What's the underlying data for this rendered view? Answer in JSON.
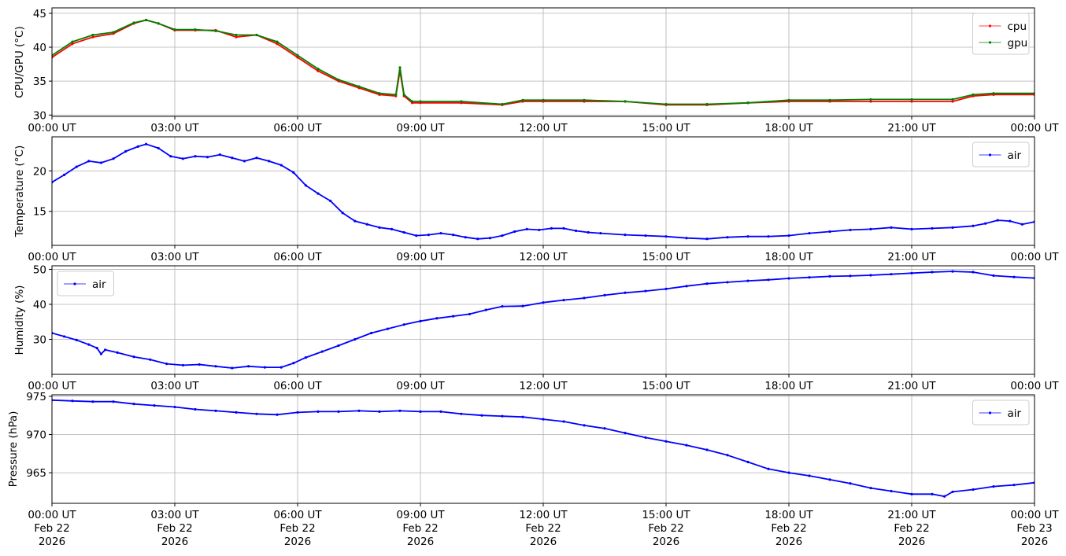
{
  "chart_data": [
    {
      "type": "line",
      "ylabel": "CPU/GPU (°C)",
      "ylim": [
        29.8,
        45.8
      ],
      "yticks": [
        30,
        35,
        40,
        45
      ],
      "xlim": [
        0,
        24
      ],
      "xticks": [
        0,
        3,
        6,
        9,
        12,
        15,
        18,
        21,
        24
      ],
      "xtick_labels": [
        "00:00 UT",
        "03:00 UT",
        "06:00 UT",
        "09:00 UT",
        "12:00 UT",
        "15:00 UT",
        "18:00 UT",
        "21:00 UT",
        "00:00 UT"
      ],
      "grid": true,
      "legend": "upper-right",
      "series": [
        {
          "name": "cpu",
          "color": "#ff0000",
          "x": [
            0,
            0.5,
            1.0,
            1.5,
            2.0,
            2.3,
            2.6,
            3.0,
            3.5,
            4.0,
            4.5,
            5.0,
            5.5,
            6.0,
            6.5,
            7.0,
            7.5,
            8.0,
            8.4,
            8.5,
            8.6,
            8.8,
            9.0,
            10.0,
            11.0,
            11.5,
            12.0,
            13.0,
            14.0,
            15.0,
            16.0,
            17.0,
            18.0,
            19.0,
            20.0,
            21.0,
            22.0,
            22.5,
            23.0,
            24.0
          ],
          "y": [
            38.5,
            40.5,
            41.5,
            42.0,
            43.5,
            44.0,
            43.5,
            42.5,
            42.5,
            42.5,
            41.5,
            41.8,
            40.5,
            38.5,
            36.5,
            35.0,
            34.0,
            33.0,
            32.8,
            36.5,
            32.8,
            31.8,
            31.8,
            31.8,
            31.5,
            32.0,
            32.0,
            32.0,
            32.0,
            31.5,
            31.5,
            31.8,
            32.0,
            32.0,
            32.0,
            32.0,
            32.0,
            32.8,
            33.0,
            33.0
          ]
        },
        {
          "name": "gpu",
          "color": "#008000",
          "x": [
            0,
            0.5,
            1.0,
            1.5,
            2.0,
            2.3,
            2.6,
            3.0,
            3.5,
            4.0,
            4.5,
            5.0,
            5.5,
            6.0,
            6.5,
            7.0,
            7.5,
            8.0,
            8.4,
            8.5,
            8.6,
            8.8,
            9.0,
            10.0,
            11.0,
            11.5,
            12.0,
            13.0,
            14.0,
            15.0,
            16.0,
            17.0,
            18.0,
            19.0,
            20.0,
            21.0,
            22.0,
            22.5,
            23.0,
            24.0
          ],
          "y": [
            38.8,
            40.8,
            41.8,
            42.2,
            43.6,
            44.0,
            43.5,
            42.6,
            42.6,
            42.4,
            41.8,
            41.8,
            40.8,
            38.8,
            36.8,
            35.2,
            34.2,
            33.2,
            33.0,
            37.0,
            33.0,
            32.0,
            32.0,
            32.0,
            31.6,
            32.2,
            32.2,
            32.2,
            32.0,
            31.6,
            31.6,
            31.8,
            32.2,
            32.2,
            32.3,
            32.3,
            32.3,
            33.0,
            33.2,
            33.2
          ]
        }
      ]
    },
    {
      "type": "line",
      "ylabel": "Temperature (°C)",
      "ylim": [
        10.8,
        24.2
      ],
      "yticks": [
        15,
        20
      ],
      "xlim": [
        0,
        24
      ],
      "xticks": [
        0,
        3,
        6,
        9,
        12,
        15,
        18,
        21,
        24
      ],
      "xtick_labels": [
        "00:00 UT",
        "03:00 UT",
        "06:00 UT",
        "09:00 UT",
        "12:00 UT",
        "15:00 UT",
        "18:00 UT",
        "21:00 UT",
        "00:00 UT"
      ],
      "grid": true,
      "legend": "upper-right",
      "series": [
        {
          "name": "air",
          "color": "#0000ff",
          "x": [
            0,
            0.3,
            0.6,
            0.9,
            1.2,
            1.5,
            1.8,
            2.1,
            2.3,
            2.6,
            2.9,
            3.2,
            3.5,
            3.8,
            4.1,
            4.4,
            4.7,
            5.0,
            5.3,
            5.6,
            5.9,
            6.2,
            6.5,
            6.8,
            7.1,
            7.4,
            7.7,
            8.0,
            8.3,
            8.6,
            8.9,
            9.2,
            9.5,
            9.8,
            10.1,
            10.4,
            10.7,
            11.0,
            11.3,
            11.6,
            11.9,
            12.2,
            12.5,
            12.8,
            13.1,
            13.4,
            14.0,
            14.5,
            15.0,
            15.5,
            16.0,
            16.5,
            17.0,
            17.5,
            18.0,
            18.5,
            19.0,
            19.5,
            20.0,
            20.5,
            21.0,
            21.5,
            22.0,
            22.5,
            22.8,
            23.1,
            23.4,
            23.7,
            24.0
          ],
          "y": [
            18.6,
            19.5,
            20.5,
            21.2,
            21.0,
            21.5,
            22.4,
            23.0,
            23.3,
            22.8,
            21.8,
            21.5,
            21.8,
            21.7,
            22.0,
            21.6,
            21.2,
            21.6,
            21.2,
            20.7,
            19.8,
            18.2,
            17.2,
            16.3,
            14.8,
            13.8,
            13.4,
            13.0,
            12.8,
            12.4,
            12.0,
            12.1,
            12.3,
            12.1,
            11.8,
            11.6,
            11.7,
            12.0,
            12.5,
            12.8,
            12.7,
            12.9,
            12.9,
            12.6,
            12.4,
            12.3,
            12.1,
            12.0,
            11.9,
            11.7,
            11.6,
            11.8,
            11.9,
            11.9,
            12.0,
            12.3,
            12.5,
            12.7,
            12.8,
            13.0,
            12.8,
            12.9,
            13.0,
            13.2,
            13.5,
            13.9,
            13.8,
            13.4,
            13.7
          ]
        }
      ]
    },
    {
      "type": "line",
      "ylabel": "Humidity (%)",
      "ylim": [
        20.0,
        51.0
      ],
      "yticks": [
        30,
        40,
        50
      ],
      "xlim": [
        0,
        24
      ],
      "xticks": [
        0,
        3,
        6,
        9,
        12,
        15,
        18,
        21,
        24
      ],
      "xtick_labels": [
        "00:00 UT",
        "03:00 UT",
        "06:00 UT",
        "09:00 UT",
        "12:00 UT",
        "15:00 UT",
        "18:00 UT",
        "21:00 UT",
        "00:00 UT"
      ],
      "grid": true,
      "legend": "upper-left",
      "series": [
        {
          "name": "air",
          "color": "#0000ff",
          "x": [
            0,
            0.3,
            0.6,
            0.9,
            1.1,
            1.2,
            1.3,
            1.6,
            2.0,
            2.4,
            2.8,
            3.2,
            3.6,
            4.0,
            4.4,
            4.8,
            5.2,
            5.6,
            5.9,
            6.2,
            6.6,
            7.0,
            7.4,
            7.8,
            8.2,
            8.6,
            9.0,
            9.4,
            9.8,
            10.2,
            10.6,
            11.0,
            11.5,
            12.0,
            12.5,
            13.0,
            13.5,
            14.0,
            14.5,
            15.0,
            15.5,
            16.0,
            16.5,
            17.0,
            17.5,
            18.0,
            18.5,
            19.0,
            19.5,
            20.0,
            20.5,
            21.0,
            21.5,
            22.0,
            22.5,
            23.0,
            23.5,
            24.0
          ],
          "y": [
            31.8,
            30.8,
            29.8,
            28.5,
            27.5,
            25.8,
            27.0,
            26.2,
            25.0,
            24.2,
            23.0,
            22.6,
            22.8,
            22.3,
            21.8,
            22.3,
            22.0,
            22.0,
            23.2,
            24.8,
            26.5,
            28.2,
            30.0,
            31.8,
            33.0,
            34.2,
            35.2,
            36.0,
            36.6,
            37.2,
            38.4,
            39.4,
            39.5,
            40.5,
            41.2,
            41.8,
            42.6,
            43.3,
            43.8,
            44.4,
            45.2,
            45.9,
            46.3,
            46.7,
            47.0,
            47.4,
            47.7,
            48.0,
            48.1,
            48.3,
            48.6,
            48.9,
            49.2,
            49.4,
            49.2,
            48.2,
            47.8,
            47.5
          ]
        }
      ]
    },
    {
      "type": "line",
      "ylabel": "Pressure (hPa)",
      "ylim": [
        961.0,
        975.2
      ],
      "yticks": [
        965,
        970,
        975
      ],
      "xlim": [
        0,
        24
      ],
      "xticks": [
        0,
        3,
        6,
        9,
        12,
        15,
        18,
        21,
        24
      ],
      "xtick_labels": [
        "00:00 UT\nFeb 22\n2026",
        "03:00 UT\nFeb 22\n2026",
        "06:00 UT\nFeb 22\n2026",
        "09:00 UT\nFeb 22\n2026",
        "12:00 UT\nFeb 22\n2026",
        "15:00 UT\nFeb 22\n2026",
        "18:00 UT\nFeb 22\n2026",
        "21:00 UT\nFeb 22\n2026",
        "00:00 UT\nFeb 23\n2026"
      ],
      "grid": true,
      "legend": "upper-right",
      "series": [
        {
          "name": "air",
          "color": "#0000ff",
          "x": [
            0,
            0.5,
            1.0,
            1.5,
            2.0,
            2.5,
            3.0,
            3.5,
            4.0,
            4.5,
            5.0,
            5.5,
            6.0,
            6.5,
            7.0,
            7.5,
            8.0,
            8.5,
            9.0,
            9.5,
            10.0,
            10.5,
            11.0,
            11.5,
            12.0,
            12.5,
            13.0,
            13.5,
            14.0,
            14.5,
            15.0,
            15.5,
            16.0,
            16.5,
            17.0,
            17.5,
            18.0,
            18.5,
            19.0,
            19.5,
            20.0,
            20.5,
            21.0,
            21.5,
            21.8,
            22.0,
            22.5,
            23.0,
            23.5,
            24.0
          ],
          "y": [
            974.5,
            974.4,
            974.3,
            974.3,
            974.0,
            973.8,
            973.6,
            973.3,
            973.1,
            972.9,
            972.7,
            972.6,
            972.9,
            973.0,
            973.0,
            973.1,
            973.0,
            973.1,
            973.0,
            973.0,
            972.7,
            972.5,
            972.4,
            972.3,
            972.0,
            971.7,
            971.2,
            970.8,
            970.2,
            969.6,
            969.1,
            968.6,
            968.0,
            967.3,
            966.4,
            965.5,
            965.0,
            964.6,
            964.1,
            963.6,
            963.0,
            962.6,
            962.2,
            962.2,
            961.9,
            962.5,
            962.8,
            963.2,
            963.4,
            963.7
          ]
        }
      ]
    }
  ]
}
